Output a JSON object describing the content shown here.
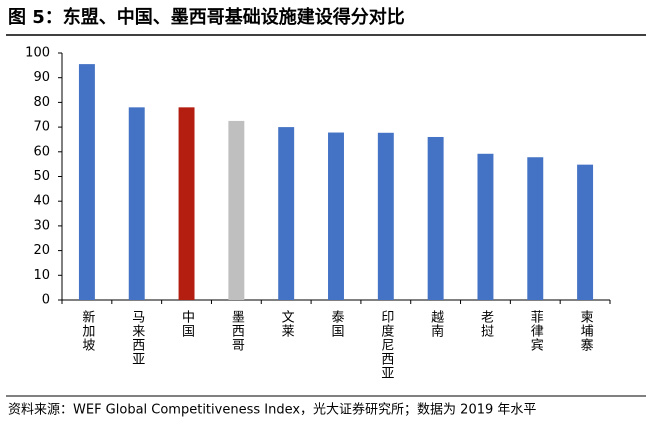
{
  "chart_data": {
    "type": "bar",
    "title": "图 5：东盟、中国、墨西哥基础设施建设得分对比",
    "categories": [
      "新加坡",
      "马来西亚",
      "中国",
      "墨西哥",
      "文莱",
      "泰国",
      "印度尼西亚",
      "越南",
      "老挝",
      "菲律宾",
      "柬埔寨"
    ],
    "values": [
      95.5,
      78,
      78,
      72.5,
      70,
      67.8,
      67.7,
      66,
      59.2,
      57.8,
      54.8
    ],
    "colors": [
      "#4472c4",
      "#4472c4",
      "#b31e10",
      "#bfbfbf",
      "#4472c4",
      "#4472c4",
      "#4472c4",
      "#4472c4",
      "#4472c4",
      "#4472c4",
      "#4472c4"
    ],
    "ylim": [
      0,
      100
    ],
    "yticks": [
      0,
      10,
      20,
      30,
      40,
      50,
      60,
      70,
      80,
      90,
      100
    ],
    "grid": false,
    "source": "资料来源：WEF Global Competitiveness Index，光大证券研究所；数据为 2019 年水平"
  }
}
